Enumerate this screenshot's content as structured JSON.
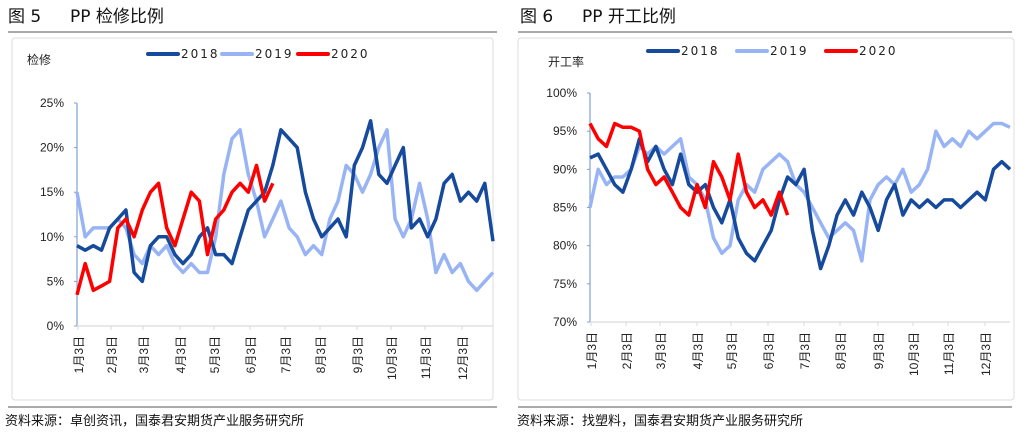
{
  "colors": {
    "s2018": "#164a9c",
    "s2019": "#98b4f5",
    "s2020": "#ff0000",
    "axis": "#7ea0d4"
  },
  "chart_data": [
    {
      "type": "line",
      "figure_label": "图 5",
      "title": "PP 检修比例",
      "ylabel": "检修",
      "source": "资料来源：卓创资讯，国泰君安期货产业服务研究所",
      "ylim": [
        0,
        25
      ],
      "yticks": [
        "0%",
        "5%",
        "10%",
        "15%",
        "20%",
        "25%"
      ],
      "x_unit": "week of year",
      "xticks": [
        "1月3日",
        "2月3日",
        "3月3日",
        "4月3日",
        "5月3日",
        "6月3日",
        "7月3日",
        "8月3日",
        "9月3日",
        "10月3日",
        "11月3日",
        "12月3日"
      ],
      "legend": "top",
      "series": [
        {
          "name": "2018",
          "values": [
            9,
            8.5,
            9,
            8.5,
            11,
            12,
            13,
            6,
            5,
            9,
            10,
            10,
            8,
            7,
            8,
            10,
            11,
            8,
            8,
            7,
            10,
            13,
            14,
            15,
            18,
            22,
            21,
            20,
            15,
            12,
            10,
            11,
            12,
            10,
            18,
            20,
            23,
            17,
            16,
            18,
            20,
            11,
            12,
            10,
            12,
            16,
            17,
            14,
            15,
            14,
            16,
            9.5
          ]
        },
        {
          "name": "2019",
          "values": [
            15,
            10,
            11,
            11,
            11,
            12,
            11,
            8,
            7,
            9,
            8,
            9,
            7,
            6,
            7,
            6,
            6,
            10,
            17,
            21,
            22,
            17,
            14,
            10,
            12,
            14,
            11,
            10,
            8,
            9,
            8,
            12,
            14,
            18,
            17,
            15,
            17,
            20,
            22,
            12,
            10,
            12,
            16,
            12,
            6,
            8,
            6,
            7,
            5,
            4,
            5,
            6
          ]
        },
        {
          "name": "2020",
          "values": [
            3.5,
            7,
            4,
            4.5,
            5,
            11,
            12,
            10,
            13,
            15,
            16,
            11,
            9,
            12,
            15,
            14,
            8,
            12,
            13,
            15,
            16,
            15,
            18,
            14,
            16
          ]
        }
      ]
    },
    {
      "type": "line",
      "figure_label": "图 6",
      "title": "PP 开工比例",
      "ylabel": "开工率",
      "source": "资料来源：找塑料，国泰君安期货产业服务研究所",
      "ylim": [
        70,
        100
      ],
      "yticks": [
        "70%",
        "75%",
        "80%",
        "85%",
        "90%",
        "95%",
        "100%"
      ],
      "x_unit": "week of year",
      "xticks": [
        "1月3日",
        "2月3日",
        "3月3日",
        "4月3日",
        "5月3日",
        "6月3日",
        "7月3日",
        "8月3日",
        "9月3日",
        "10月3日",
        "11月3日",
        "12月3日"
      ],
      "legend": "top",
      "series": [
        {
          "name": "2018",
          "values": [
            91.5,
            92,
            90,
            88,
            87,
            90,
            94,
            91,
            93,
            90,
            88,
            92,
            88,
            87,
            88,
            85,
            83,
            86,
            81,
            79,
            78,
            80,
            82,
            86,
            89,
            88,
            90,
            82,
            77,
            80,
            84,
            86,
            84,
            87,
            85,
            82,
            86,
            88,
            84,
            86,
            85,
            86,
            85,
            86,
            86,
            85,
            86,
            87,
            86,
            90,
            91,
            90
          ]
        },
        {
          "name": "2019",
          "values": [
            85,
            90,
            88,
            89,
            89,
            90,
            93,
            92,
            93,
            92,
            93,
            94,
            89,
            88,
            86,
            81,
            79,
            80,
            86,
            88,
            87,
            90,
            91,
            92,
            91,
            88,
            87,
            85,
            83,
            81,
            82,
            83,
            82,
            78,
            86,
            88,
            89,
            88,
            90,
            87,
            88,
            90,
            95,
            93,
            94,
            93,
            95,
            94,
            95,
            96,
            96,
            95.5
          ]
        },
        {
          "name": "2020",
          "values": [
            96,
            94,
            93,
            96,
            95.5,
            95.5,
            95,
            90,
            88,
            89,
            87,
            85,
            84,
            88,
            85,
            91,
            89,
            86,
            92,
            87,
            85,
            86,
            84,
            87,
            84
          ]
        }
      ]
    }
  ]
}
